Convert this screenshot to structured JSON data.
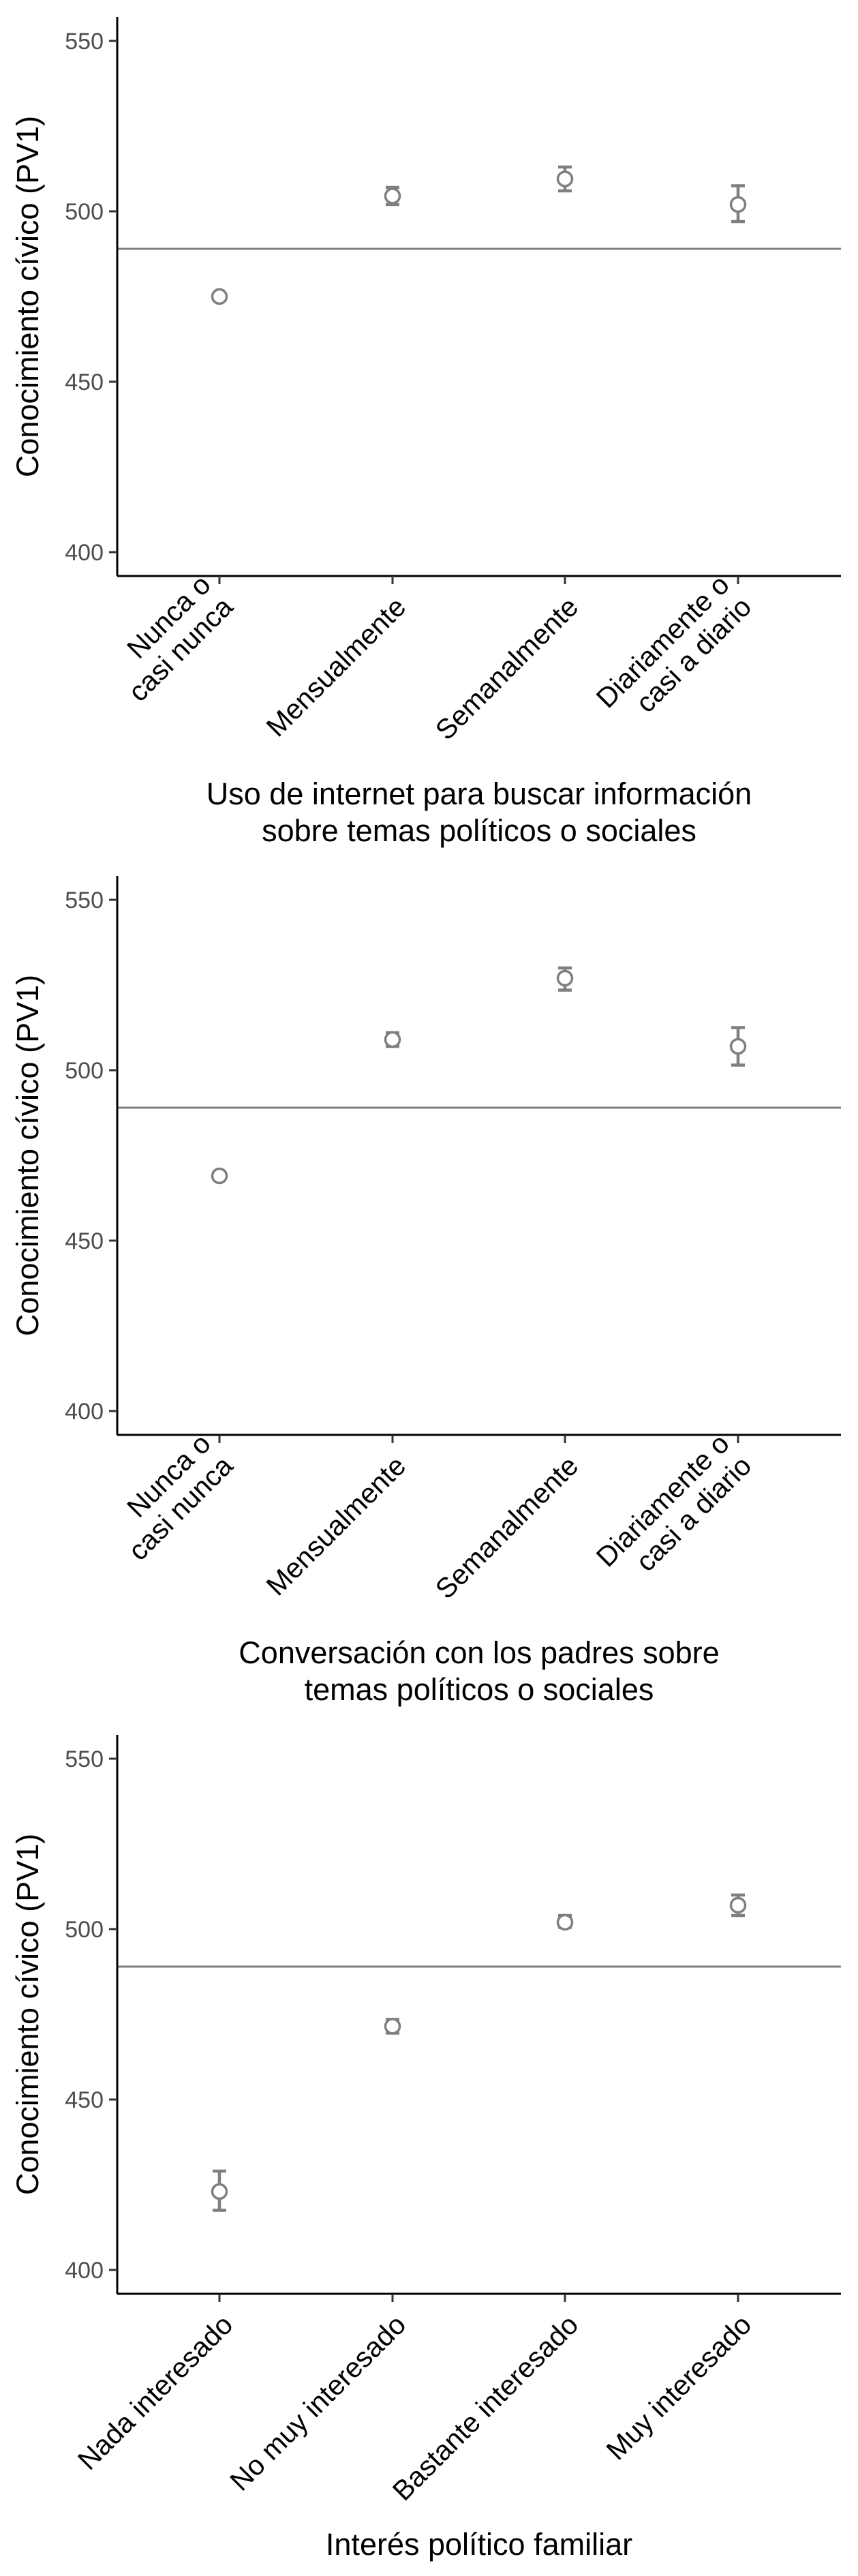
{
  "chart_data": [
    {
      "type": "scatter",
      "ylabel": "Conocimiento cívico (PV1)",
      "xlabel": [
        "Uso de internet para buscar información",
        "sobre temas políticos o sociales"
      ],
      "yticks": [
        400,
        450,
        500,
        550
      ],
      "ylim": [
        393,
        557
      ],
      "categories": [
        [
          "Nunca o",
          "casi nunca"
        ],
        [
          "Mensualmente"
        ],
        [
          "Semanalmente"
        ],
        [
          "Diariamente o",
          "casi a diario"
        ]
      ],
      "values": [
        475,
        504.5,
        509.5,
        502
      ],
      "error_low": [
        474,
        502,
        506,
        497
      ],
      "error_high": [
        476,
        507,
        513,
        507.5
      ],
      "reference_line": 489,
      "grid": false,
      "colors": {
        "point": "#7f7f7f",
        "line": "#7f7f7f",
        "axis": "#000000"
      }
    },
    {
      "type": "scatter",
      "ylabel": "Conocimiento cívico (PV1)",
      "xlabel": [
        "Conversación con los padres sobre",
        "temas políticos o sociales"
      ],
      "yticks": [
        400,
        450,
        500,
        550
      ],
      "ylim": [
        393,
        557
      ],
      "categories": [
        [
          "Nunca o",
          "casi nunca"
        ],
        [
          "Mensualmente"
        ],
        [
          "Semanalmente"
        ],
        [
          "Diariamente o",
          "casi a diario"
        ]
      ],
      "values": [
        469,
        509,
        527,
        507
      ],
      "error_low": [
        468,
        507,
        523.5,
        501.5
      ],
      "error_high": [
        470,
        511,
        530,
        512.5
      ],
      "reference_line": 489,
      "grid": false,
      "colors": {
        "point": "#7f7f7f",
        "line": "#7f7f7f",
        "axis": "#000000"
      }
    },
    {
      "type": "scatter",
      "ylabel": "Conocimiento cívico (PV1)",
      "xlabel": [
        "Interés político familiar"
      ],
      "yticks": [
        400,
        450,
        500,
        550
      ],
      "ylim": [
        393,
        557
      ],
      "categories": [
        [
          "Nada interesado"
        ],
        [
          "No muy interesado"
        ],
        [
          "Bastante interesado"
        ],
        [
          "Muy interesado"
        ]
      ],
      "values": [
        423,
        471.5,
        502,
        507
      ],
      "error_low": [
        417.5,
        469.5,
        500.5,
        504
      ],
      "error_high": [
        429,
        473.5,
        504,
        510
      ],
      "reference_line": 489,
      "grid": false,
      "colors": {
        "point": "#7f7f7f",
        "line": "#7f7f7f",
        "axis": "#000000"
      }
    }
  ]
}
